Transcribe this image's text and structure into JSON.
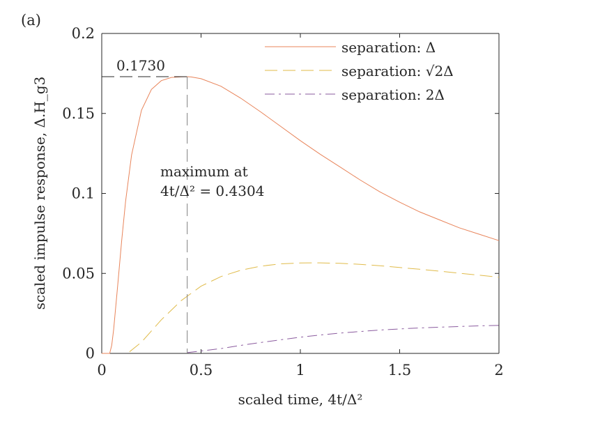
{
  "panel_label": "(a)",
  "chart_data": {
    "type": "line",
    "xlabel": "scaled time, 4t/Δ²",
    "ylabel": "scaled impulse response, Δ.H_g3",
    "xlim": [
      0,
      2
    ],
    "ylim": [
      0,
      0.2
    ],
    "xticks": [
      0,
      0.5,
      1,
      1.5,
      2
    ],
    "xtick_labels": [
      "0",
      "0.5",
      "1",
      "1.5",
      "2"
    ],
    "yticks": [
      0,
      0.05,
      0.1,
      0.15,
      0.2
    ],
    "ytick_labels": [
      "0",
      "0.05",
      "0.1",
      "0.15",
      "0.2"
    ],
    "grid": false,
    "legend_position": "top-right",
    "series": [
      {
        "name": "separation: Δ",
        "color": "#e8845a",
        "style": "solid",
        "x": [
          0.0,
          0.02,
          0.04,
          0.05,
          0.06,
          0.08,
          0.1,
          0.12,
          0.15,
          0.2,
          0.25,
          0.3,
          0.35,
          0.4,
          0.43,
          0.45,
          0.5,
          0.6,
          0.7,
          0.8,
          0.9,
          1.0,
          1.1,
          1.2,
          1.3,
          1.4,
          1.5,
          1.6,
          1.7,
          1.8,
          1.9,
          2.0
        ],
        "y": [
          0.0,
          0.0,
          0.0,
          0.005,
          0.015,
          0.042,
          0.07,
          0.095,
          0.124,
          0.152,
          0.165,
          0.1705,
          0.1725,
          0.1729,
          0.173,
          0.1728,
          0.1717,
          0.167,
          0.1595,
          0.151,
          0.142,
          0.133,
          0.1245,
          0.1165,
          0.1085,
          0.101,
          0.0945,
          0.0885,
          0.0835,
          0.0785,
          0.0745,
          0.0705
        ]
      },
      {
        "name": "separation: √2Δ",
        "color": "#e0bb4a",
        "style": "dashed",
        "x": [
          0.14,
          0.2,
          0.3,
          0.4,
          0.5,
          0.6,
          0.7,
          0.8,
          0.9,
          1.0,
          1.1,
          1.2,
          1.3,
          1.4,
          1.5,
          1.6,
          1.7,
          1.8,
          1.9,
          2.0
        ],
        "y": [
          0.001,
          0.007,
          0.021,
          0.033,
          0.042,
          0.048,
          0.052,
          0.0545,
          0.056,
          0.0565,
          0.0566,
          0.0563,
          0.0557,
          0.0548,
          0.0537,
          0.0526,
          0.0514,
          0.0501,
          0.0489,
          0.0476
        ]
      },
      {
        "name": "separation: 2Δ",
        "color": "#8a5a9e",
        "style": "dashdot",
        "x": [
          0.43,
          0.5,
          0.6,
          0.7,
          0.8,
          0.9,
          1.0,
          1.1,
          1.2,
          1.3,
          1.4,
          1.5,
          1.6,
          1.7,
          1.8,
          1.9,
          2.0
        ],
        "y": [
          0.0005,
          0.0015,
          0.003,
          0.005,
          0.0068,
          0.0085,
          0.0101,
          0.0115,
          0.0127,
          0.0137,
          0.0146,
          0.0153,
          0.0159,
          0.0164,
          0.0168,
          0.0172,
          0.0175
        ]
      }
    ],
    "annotations": {
      "peak_value_label": "0.1730",
      "peak_y": 0.173,
      "peak_x": 0.4304,
      "max_text_line1": "maximum at",
      "max_text_line2": "4t/Δ² = 0.4304"
    },
    "legend_entries": [
      "separation: Δ",
      "separation: √2Δ",
      "separation: 2Δ"
    ]
  }
}
